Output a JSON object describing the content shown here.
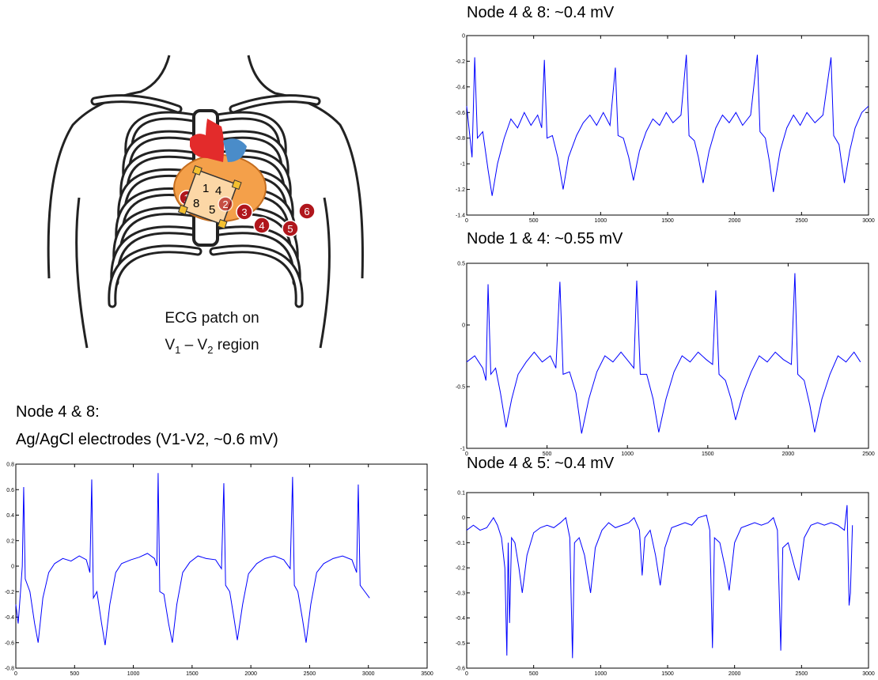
{
  "illustration": {
    "patch_nodes": [
      "1",
      "4",
      "8",
      "5"
    ],
    "electrodes": [
      "1",
      "2",
      "3",
      "4",
      "5",
      "6"
    ],
    "caption": {
      "line1": "ECG patch on",
      "v1": "V",
      "sub1": "1",
      "dash": " – ",
      "v2": "V",
      "sub2": "2",
      "rest": " region"
    }
  },
  "chart_data": [
    {
      "type": "line",
      "title": "Node 4 & 8: ~0.4 mV",
      "x": [
        0,
        20,
        40,
        60,
        80,
        120,
        160,
        190,
        230,
        280,
        330,
        380,
        430,
        480,
        530,
        560,
        580,
        600,
        640,
        680,
        720,
        760,
        820,
        870,
        920,
        970,
        1020,
        1070,
        1110,
        1130,
        1170,
        1210,
        1245,
        1290,
        1340,
        1390,
        1440,
        1490,
        1540,
        1600,
        1640,
        1660,
        1700,
        1730,
        1765,
        1810,
        1860,
        1910,
        1960,
        2010,
        2060,
        2120,
        2170,
        2190,
        2230,
        2260,
        2290,
        2340,
        2390,
        2440,
        2490,
        2540,
        2600,
        2660,
        2720,
        2740,
        2780,
        2820,
        2860,
        2900,
        2950,
        3000
      ],
      "series": [
        {
          "color": "#0000ff",
          "values": [
            -0.55,
            -0.75,
            -0.95,
            -0.17,
            -0.8,
            -0.75,
            -1.05,
            -1.25,
            -1.0,
            -0.8,
            -0.65,
            -0.72,
            -0.6,
            -0.7,
            -0.62,
            -0.72,
            -0.19,
            -0.8,
            -0.78,
            -0.95,
            -1.2,
            -0.95,
            -0.78,
            -0.68,
            -0.62,
            -0.7,
            -0.6,
            -0.7,
            -0.25,
            -0.78,
            -0.8,
            -0.95,
            -1.13,
            -0.9,
            -0.75,
            -0.65,
            -0.7,
            -0.6,
            -0.68,
            -0.62,
            -0.15,
            -0.78,
            -0.82,
            -0.95,
            -1.15,
            -0.9,
            -0.72,
            -0.62,
            -0.68,
            -0.6,
            -0.7,
            -0.62,
            -0.15,
            -0.75,
            -0.8,
            -0.98,
            -1.22,
            -0.9,
            -0.72,
            -0.62,
            -0.7,
            -0.6,
            -0.68,
            -0.62,
            -0.17,
            -0.78,
            -0.85,
            -1.15,
            -0.9,
            -0.72,
            -0.6,
            -0.55
          ]
        }
      ],
      "xlim": [
        0,
        3000
      ],
      "ylim": [
        -1.4,
        0
      ],
      "xticks": [
        0,
        500,
        1000,
        1500,
        2000,
        2500,
        3000
      ],
      "yticks": [
        0,
        -0.2,
        -0.4,
        -0.6,
        -0.8,
        -1,
        -1.2,
        -1.4
      ]
    },
    {
      "type": "line",
      "title": "Node 1 & 4:  ~0.55 mV",
      "x": [
        0,
        50,
        100,
        120,
        133,
        150,
        180,
        210,
        245,
        280,
        320,
        370,
        420,
        470,
        520,
        555,
        580,
        600,
        640,
        680,
        715,
        760,
        810,
        860,
        910,
        960,
        1010,
        1040,
        1058,
        1080,
        1120,
        1160,
        1195,
        1240,
        1290,
        1340,
        1390,
        1440,
        1490,
        1530,
        1550,
        1570,
        1610,
        1645,
        1673,
        1720,
        1770,
        1820,
        1870,
        1920,
        1970,
        2020,
        2042,
        2060,
        2100,
        2135,
        2165,
        2210,
        2260,
        2310,
        2360,
        2410,
        2450
      ],
      "series": [
        {
          "color": "#0000ff",
          "values": [
            -0.3,
            -0.25,
            -0.35,
            -0.45,
            0.33,
            -0.4,
            -0.35,
            -0.55,
            -0.83,
            -0.6,
            -0.4,
            -0.3,
            -0.22,
            -0.3,
            -0.25,
            -0.35,
            0.35,
            -0.4,
            -0.38,
            -0.55,
            -0.88,
            -0.6,
            -0.38,
            -0.25,
            -0.3,
            -0.22,
            -0.3,
            -0.35,
            0.36,
            -0.4,
            -0.4,
            -0.6,
            -0.87,
            -0.6,
            -0.38,
            -0.25,
            -0.3,
            -0.22,
            -0.28,
            -0.32,
            0.28,
            -0.4,
            -0.45,
            -0.6,
            -0.77,
            -0.55,
            -0.38,
            -0.25,
            -0.3,
            -0.22,
            -0.28,
            -0.32,
            0.42,
            -0.4,
            -0.45,
            -0.65,
            -0.87,
            -0.6,
            -0.4,
            -0.25,
            -0.3,
            -0.22,
            -0.3
          ]
        }
      ],
      "xlim": [
        0,
        2500
      ],
      "ylim": [
        -1,
        0.5
      ],
      "xticks": [
        0,
        500,
        1000,
        1500,
        2000,
        2500
      ],
      "yticks": [
        0.5,
        0,
        -0.5,
        -1
      ]
    },
    {
      "type": "line",
      "title": "Node 4 & 5: ~0.4 mV",
      "x": [
        0,
        50,
        100,
        150,
        200,
        230,
        260,
        285,
        300,
        310,
        320,
        335,
        360,
        390,
        415,
        450,
        500,
        550,
        600,
        650,
        700,
        740,
        770,
        790,
        805,
        840,
        880,
        925,
        960,
        1010,
        1060,
        1110,
        1160,
        1210,
        1250,
        1290,
        1310,
        1330,
        1370,
        1410,
        1445,
        1480,
        1530,
        1580,
        1630,
        1680,
        1730,
        1790,
        1815,
        1835,
        1850,
        1890,
        1930,
        1960,
        2000,
        2050,
        2100,
        2150,
        2200,
        2250,
        2290,
        2320,
        2345,
        2360,
        2400,
        2450,
        2480,
        2520,
        2570,
        2620,
        2670,
        2720,
        2770,
        2820,
        2840,
        2855,
        2865,
        2880
      ],
      "series": [
        {
          "color": "#0000ff",
          "values": [
            -0.05,
            -0.03,
            -0.05,
            -0.04,
            0.0,
            -0.03,
            -0.08,
            -0.2,
            -0.55,
            -0.1,
            -0.42,
            -0.08,
            -0.1,
            -0.2,
            -0.3,
            -0.15,
            -0.06,
            -0.04,
            -0.03,
            -0.04,
            -0.02,
            0.0,
            -0.08,
            -0.56,
            -0.1,
            -0.08,
            -0.15,
            -0.3,
            -0.12,
            -0.05,
            -0.02,
            -0.04,
            -0.03,
            -0.02,
            0.0,
            -0.05,
            -0.23,
            -0.08,
            -0.05,
            -0.15,
            -0.27,
            -0.12,
            -0.04,
            -0.03,
            -0.02,
            -0.03,
            0.0,
            0.01,
            -0.05,
            -0.52,
            -0.08,
            -0.1,
            -0.2,
            -0.29,
            -0.1,
            -0.04,
            -0.03,
            -0.02,
            -0.03,
            -0.02,
            0.0,
            -0.05,
            -0.53,
            -0.12,
            -0.1,
            -0.2,
            -0.25,
            -0.08,
            -0.03,
            -0.02,
            -0.03,
            -0.02,
            -0.03,
            -0.05,
            0.05,
            -0.35,
            -0.3,
            -0.03
          ]
        }
      ],
      "xlim": [
        0,
        3000
      ],
      "ylim": [
        -0.6,
        0.1
      ],
      "xticks": [
        0,
        500,
        1000,
        1500,
        2000,
        2500,
        3000
      ],
      "yticks": [
        0.1,
        0,
        -0.1,
        -0.2,
        -0.3,
        -0.4,
        -0.5,
        -0.6
      ]
    },
    {
      "type": "line",
      "title": "Node 4 & 8:",
      "subtitle": "Ag/AgCl electrodes (V1-V2, ~0.6 mV)",
      "x": [
        0,
        20,
        40,
        55,
        67,
        80,
        120,
        160,
        190,
        230,
        280,
        330,
        400,
        470,
        540,
        600,
        630,
        646,
        660,
        690,
        730,
        760,
        800,
        850,
        900,
        980,
        1050,
        1120,
        1180,
        1200,
        1211,
        1225,
        1260,
        1300,
        1332,
        1370,
        1420,
        1480,
        1550,
        1620,
        1700,
        1750,
        1770,
        1785,
        1820,
        1855,
        1885,
        1930,
        1980,
        2050,
        2120,
        2200,
        2280,
        2335,
        2355,
        2370,
        2400,
        2440,
        2470,
        2510,
        2560,
        2620,
        2700,
        2780,
        2860,
        2900,
        2914,
        2930,
        2970,
        3010
      ],
      "series": [
        {
          "color": "#0000ff",
          "values": [
            -0.3,
            -0.45,
            -0.2,
            0.0,
            0.62,
            -0.1,
            -0.2,
            -0.45,
            -0.6,
            -0.25,
            -0.05,
            0.02,
            0.06,
            0.04,
            0.08,
            0.05,
            -0.05,
            0.68,
            -0.25,
            -0.2,
            -0.45,
            -0.62,
            -0.3,
            -0.05,
            0.02,
            0.05,
            0.07,
            0.1,
            0.06,
            0.0,
            0.73,
            -0.2,
            -0.22,
            -0.45,
            -0.6,
            -0.3,
            -0.05,
            0.03,
            0.08,
            0.06,
            0.05,
            -0.02,
            0.65,
            -0.15,
            -0.2,
            -0.4,
            -0.58,
            -0.3,
            -0.06,
            0.02,
            0.06,
            0.08,
            0.05,
            -0.02,
            0.7,
            -0.15,
            -0.2,
            -0.42,
            -0.6,
            -0.3,
            -0.05,
            0.02,
            0.06,
            0.08,
            0.05,
            -0.05,
            0.64,
            -0.15,
            -0.2,
            -0.25
          ]
        }
      ],
      "xlim": [
        0,
        3500
      ],
      "ylim": [
        -0.8,
        0.8
      ],
      "xticks": [
        0,
        500,
        1000,
        1500,
        2000,
        2500,
        3000,
        3500
      ],
      "yticks": [
        0.8,
        0.6,
        0.4,
        0.2,
        0,
        -0.2,
        -0.4,
        -0.6,
        -0.8
      ]
    }
  ]
}
